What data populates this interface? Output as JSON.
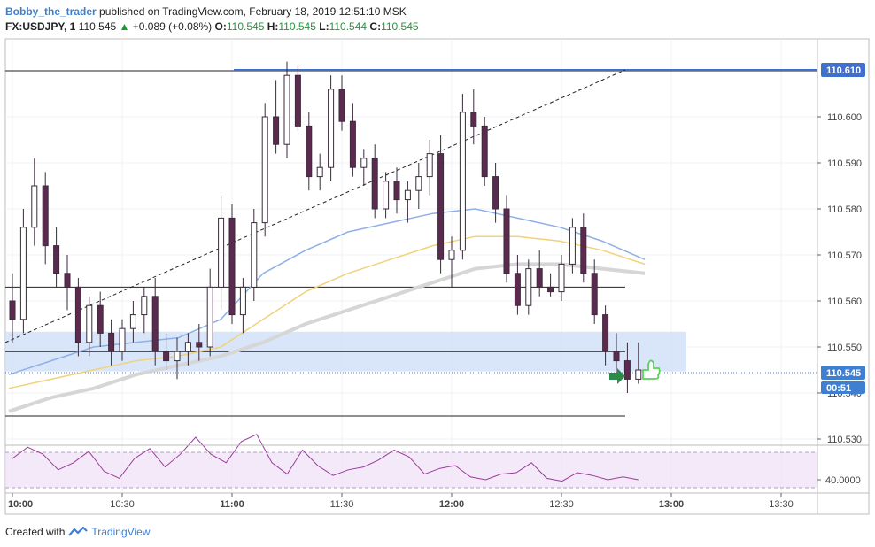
{
  "header": {
    "author": "Bobby_the_trader",
    "published_text": "published on TradingView.com, February 18, 2019 12:51:10 MSK",
    "symbol": "FX:USDJPY, 1",
    "last": "110.545",
    "change": "+0.089 (+0.08%)",
    "open_label": "O:",
    "open_value": "110.545",
    "high_label": "H:",
    "high_value": "110.545",
    "low_label": "L:",
    "low_value": "110.544",
    "close_label": "C:",
    "close_value": "110.545"
  },
  "price_axis": {
    "ticks": [
      "110.600",
      "110.590",
      "110.580",
      "110.570",
      "110.560",
      "110.550",
      "110.540",
      "110.530"
    ],
    "level_tag": "110.610",
    "current_tag": "110.545",
    "countdown": "00:51"
  },
  "time_axis": {
    "ticks": [
      "10:00",
      "10:30",
      "11:00",
      "11:30",
      "12:00",
      "12:30",
      "13:00",
      "13:30"
    ]
  },
  "rsi": {
    "value_tag": "40.0000"
  },
  "colors": {
    "bull": "#ffffff",
    "bear": "#5d2a4f",
    "ema_fast": "#8fb0e6",
    "ema_mid": "#f1d27a",
    "ema_slow": "#d6d6d6",
    "level": "#3f6fcf",
    "zone": "#cfe0f7",
    "rsi": "#9b3b9b",
    "rsi_band": "#efe0f7",
    "arrow": "#2e8a4a",
    "thumb": "#5bd15b"
  },
  "footer": {
    "created_with": "Created with",
    "brand": "TradingView"
  },
  "chart_data": {
    "type": "candlestick",
    "symbol": "FX:USDJPY",
    "interval": "1",
    "x_range": [
      "09:58",
      "13:40"
    ],
    "y_range": [
      110.529,
      110.614
    ],
    "candles": [
      [
        "10:00",
        110.56,
        110.566,
        110.551,
        110.556
      ],
      [
        "10:03",
        110.556,
        110.58,
        110.553,
        110.576
      ],
      [
        "10:06",
        110.576,
        110.591,
        110.572,
        110.585
      ],
      [
        "10:09",
        110.585,
        110.588,
        110.568,
        110.572
      ],
      [
        "10:12",
        110.572,
        110.576,
        110.563,
        110.566
      ],
      [
        "10:15",
        110.566,
        110.57,
        110.558,
        110.563
      ],
      [
        "10:18",
        110.563,
        110.565,
        110.548,
        110.551
      ],
      [
        "10:21",
        110.551,
        110.561,
        110.548,
        110.559
      ],
      [
        "10:24",
        110.559,
        110.562,
        110.55,
        110.553
      ],
      [
        "10:27",
        110.553,
        110.556,
        110.546,
        110.549
      ],
      [
        "10:30",
        110.549,
        110.556,
        110.547,
        110.554
      ],
      [
        "10:33",
        110.554,
        110.56,
        110.551,
        110.557
      ],
      [
        "10:36",
        110.557,
        110.563,
        110.553,
        110.561
      ],
      [
        "10:39",
        110.561,
        110.565,
        110.546,
        110.549
      ],
      [
        "10:42",
        110.549,
        110.553,
        110.545,
        110.547
      ],
      [
        "10:45",
        110.547,
        110.552,
        110.543,
        110.549
      ],
      [
        "10:48",
        110.549,
        110.553,
        110.546,
        110.551
      ],
      [
        "10:51",
        110.551,
        110.555,
        110.547,
        110.55
      ],
      [
        "10:54",
        110.55,
        110.567,
        110.548,
        110.563
      ],
      [
        "10:57",
        110.563,
        110.583,
        110.558,
        110.578
      ],
      [
        "11:00",
        110.578,
        110.581,
        110.555,
        110.557
      ],
      [
        "11:03",
        110.557,
        110.565,
        110.553,
        110.563
      ],
      [
        "11:06",
        110.563,
        110.58,
        110.56,
        110.577
      ],
      [
        "11:09",
        110.577,
        110.603,
        110.574,
        110.6
      ],
      [
        "11:12",
        110.6,
        110.608,
        110.592,
        110.594
      ],
      [
        "11:15",
        110.594,
        110.612,
        110.591,
        110.609
      ],
      [
        "11:18",
        110.609,
        110.611,
        110.597,
        110.598
      ],
      [
        "11:21",
        110.598,
        110.601,
        110.584,
        110.587
      ],
      [
        "11:24",
        110.587,
        110.592,
        110.584,
        110.589
      ],
      [
        "11:27",
        110.589,
        110.609,
        110.586,
        110.606
      ],
      [
        "11:30",
        110.606,
        110.609,
        110.597,
        110.599
      ],
      [
        "11:33",
        110.599,
        110.603,
        110.587,
        110.589
      ],
      [
        "11:36",
        110.589,
        110.593,
        110.585,
        110.591
      ],
      [
        "11:39",
        110.591,
        110.594,
        110.578,
        110.58
      ],
      [
        "11:42",
        110.58,
        110.588,
        110.578,
        110.586
      ],
      [
        "11:45",
        110.586,
        110.589,
        110.579,
        110.582
      ],
      [
        "11:48",
        110.582,
        110.586,
        110.577,
        110.584
      ],
      [
        "11:51",
        110.584,
        110.59,
        110.58,
        110.587
      ],
      [
        "11:54",
        110.587,
        110.595,
        110.583,
        110.592
      ],
      [
        "11:57",
        110.592,
        110.596,
        110.566,
        110.569
      ],
      [
        "12:00",
        110.569,
        110.574,
        110.563,
        110.571
      ],
      [
        "12:03",
        110.571,
        110.605,
        110.569,
        110.601
      ],
      [
        "12:06",
        110.601,
        110.606,
        110.594,
        110.598
      ],
      [
        "12:09",
        110.598,
        110.6,
        110.585,
        110.587
      ],
      [
        "12:12",
        110.587,
        110.59,
        110.577,
        110.58
      ],
      [
        "12:15",
        110.58,
        110.583,
        110.564,
        110.566
      ],
      [
        "12:18",
        110.566,
        110.57,
        110.557,
        110.559
      ],
      [
        "12:21",
        110.559,
        110.569,
        110.557,
        110.567
      ],
      [
        "12:24",
        110.567,
        110.571,
        110.561,
        110.563
      ],
      [
        "12:27",
        110.563,
        110.566,
        110.561,
        110.562
      ],
      [
        "12:30",
        110.562,
        110.57,
        110.56,
        110.568
      ],
      [
        "12:33",
        110.568,
        110.578,
        110.566,
        110.576
      ],
      [
        "12:36",
        110.576,
        110.579,
        110.564,
        110.566
      ],
      [
        "12:39",
        110.566,
        110.569,
        110.555,
        110.557
      ],
      [
        "12:42",
        110.557,
        110.559,
        110.546,
        110.549
      ],
      [
        "12:45",
        110.549,
        110.553,
        110.544,
        110.547
      ],
      [
        "12:48",
        110.547,
        110.551,
        110.54,
        110.543
      ],
      [
        "12:51",
        110.543,
        110.551,
        110.542,
        110.545
      ]
    ],
    "horizontal_levels": [
      110.61,
      110.563,
      110.549,
      110.535
    ],
    "trendline": {
      "from": [
        "10:00",
        110.551
      ],
      "to": [
        "12:45",
        110.61
      ]
    },
    "support_zone": [
      110.547,
      110.551
    ],
    "ema_fast": [
      110.544,
      110.547,
      110.55,
      110.551,
      110.552,
      110.556,
      110.566,
      110.571,
      110.575,
      110.577,
      110.579,
      110.58,
      110.578,
      110.576,
      110.573,
      110.569
    ],
    "ema_mid": [
      110.541,
      110.543,
      110.545,
      110.547,
      110.548,
      110.55,
      110.556,
      110.562,
      110.566,
      110.569,
      110.572,
      110.574,
      110.574,
      110.573,
      110.571,
      110.568
    ],
    "ema_slow": [
      110.536,
      110.539,
      110.541,
      110.544,
      110.546,
      110.548,
      110.551,
      110.555,
      110.558,
      110.561,
      110.564,
      110.567,
      110.568,
      110.568,
      110.567,
      110.566
    ],
    "rsi": [
      55,
      63,
      58,
      47,
      52,
      60,
      46,
      41,
      55,
      62,
      49,
      58,
      70,
      58,
      52,
      67,
      72,
      52,
      44,
      61,
      50,
      43,
      47,
      49,
      54,
      61,
      56,
      44,
      48,
      50,
      42,
      40,
      44,
      45,
      52,
      41,
      39,
      45,
      43,
      40,
      42,
      40
    ]
  }
}
